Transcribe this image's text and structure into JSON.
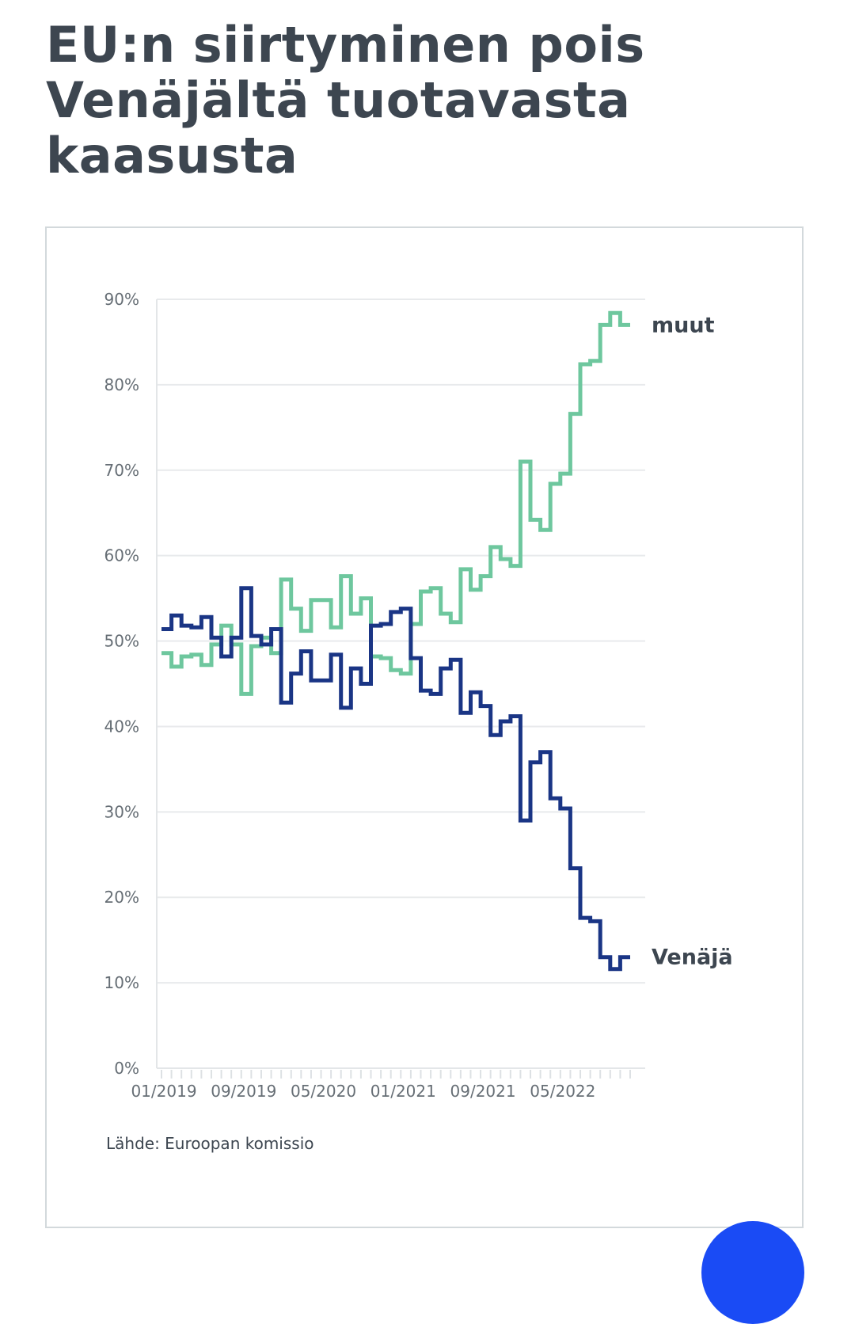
{
  "title_lines": [
    "EU:n siirtyminen pois",
    "Venäjältä tuotavasta",
    "kaasusta"
  ],
  "source": "Lähde: Euroopan komissio",
  "chart_data": {
    "type": "line",
    "step": true,
    "grid": true,
    "ylim": [
      0,
      90
    ],
    "yticks": [
      0,
      10,
      20,
      30,
      40,
      50,
      60,
      70,
      80,
      90
    ],
    "ytick_labels": [
      "0%",
      "10%",
      "20%",
      "30%",
      "40%",
      "50%",
      "60%",
      "70%",
      "80%",
      "90%"
    ],
    "x_range": [
      0,
      47
    ],
    "xtick_months": [
      0,
      8,
      16,
      24,
      32,
      40
    ],
    "xtick_labels": [
      "01/2019",
      "09/2019",
      "05/2020",
      "01/2021",
      "09/2021",
      "05/2022"
    ],
    "series": [
      {
        "name": "muut",
        "color": "#6ec79e",
        "values": [
          48.6,
          47.0,
          48.2,
          48.4,
          47.2,
          49.6,
          51.8,
          49.6,
          43.8,
          49.4,
          50.4,
          48.6,
          57.2,
          53.8,
          51.2,
          54.8,
          54.8,
          51.6,
          57.6,
          53.2,
          55.0,
          48.2,
          48.0,
          46.6,
          46.2,
          52.0,
          55.8,
          56.2,
          53.2,
          52.2,
          58.4,
          56.0,
          57.6,
          61.0,
          59.6,
          58.8,
          71.0,
          64.2,
          63.0,
          68.4,
          69.6,
          76.6,
          82.4,
          82.8,
          87.0,
          88.4,
          87.0
        ]
      },
      {
        "name": "Venäjä",
        "color": "#1a3585",
        "values": [
          51.4,
          53.0,
          51.8,
          51.6,
          52.8,
          50.4,
          48.2,
          50.4,
          56.2,
          50.6,
          49.6,
          51.4,
          42.8,
          46.2,
          48.8,
          45.4,
          45.4,
          48.4,
          42.2,
          46.8,
          45.0,
          51.8,
          52.0,
          53.4,
          53.8,
          48.0,
          44.2,
          43.8,
          46.8,
          47.8,
          41.6,
          44.0,
          42.4,
          39.0,
          40.6,
          41.2,
          29.0,
          35.8,
          37.0,
          31.6,
          30.4,
          23.4,
          17.6,
          17.2,
          13.0,
          11.6,
          13.0
        ]
      }
    ]
  }
}
